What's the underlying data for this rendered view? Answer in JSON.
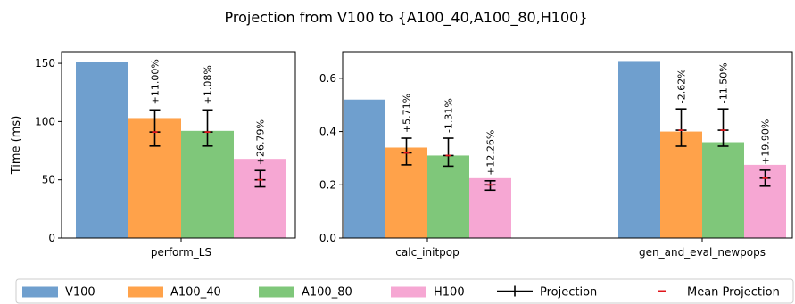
{
  "figure": {
    "title": "Projection from V100 to {A100_40,A100_80,H100}"
  },
  "colors": {
    "V100": "#6f9fce",
    "A100_40": "#ffa24a",
    "A100_80": "#7fc77a",
    "H100": "#f6a7d3",
    "projection": "#000000",
    "mean_projection": "#e0151b"
  },
  "legend": {
    "placement": "bottom",
    "entries": [
      {
        "label": "V100",
        "kind": "patch",
        "color_key": "V100"
      },
      {
        "label": "A100_40",
        "kind": "patch",
        "color_key": "A100_40"
      },
      {
        "label": "A100_80",
        "kind": "patch",
        "color_key": "A100_80"
      },
      {
        "label": "H100",
        "kind": "patch",
        "color_key": "H100"
      },
      {
        "label": "Projection",
        "kind": "errorbar",
        "color_key": "projection"
      },
      {
        "label": "Mean Projection",
        "kind": "dash",
        "color_key": "mean_projection"
      }
    ]
  },
  "chart_data": [
    {
      "type": "bar",
      "ylabel": "Time (ms)",
      "ylim": [
        0,
        160
      ],
      "yticks": [
        0,
        50,
        100,
        150
      ],
      "categories": [
        "perform_LS"
      ],
      "series": [
        {
          "name": "V100",
          "values": [
            151
          ]
        },
        {
          "name": "A100_40",
          "values": [
            103
          ]
        },
        {
          "name": "A100_80",
          "values": [
            92
          ]
        },
        {
          "name": "H100",
          "values": [
            68
          ]
        }
      ],
      "projections": [
        {
          "series": "A100_40",
          "category": "perform_LS",
          "mean": 91,
          "low": 79,
          "high": 110,
          "label": "+11.00%"
        },
        {
          "series": "A100_80",
          "category": "perform_LS",
          "mean": 91,
          "low": 79,
          "high": 110,
          "label": "+1.08%"
        },
        {
          "series": "H100",
          "category": "perform_LS",
          "mean": 50,
          "low": 44,
          "high": 58,
          "label": "+26.79%"
        }
      ]
    },
    {
      "type": "bar",
      "ylabel": "",
      "ylim": [
        0,
        0.7
      ],
      "yticks": [
        0.0,
        0.2,
        0.4,
        0.6
      ],
      "categories": [
        "calc_initpop",
        "gen_and_eval_newpops"
      ],
      "series": [
        {
          "name": "V100",
          "values": [
            0.52,
            0.665
          ]
        },
        {
          "name": "A100_40",
          "values": [
            0.34,
            0.4
          ]
        },
        {
          "name": "A100_80",
          "values": [
            0.31,
            0.36
          ]
        },
        {
          "name": "H100",
          "values": [
            0.225,
            0.275
          ]
        }
      ],
      "projections": [
        {
          "series": "A100_40",
          "category": "calc_initpop",
          "mean": 0.32,
          "low": 0.275,
          "high": 0.375,
          "label": "+5.71%"
        },
        {
          "series": "A100_80",
          "category": "calc_initpop",
          "mean": 0.31,
          "low": 0.27,
          "high": 0.375,
          "label": "-1.31%"
        },
        {
          "series": "H100",
          "category": "calc_initpop",
          "mean": 0.2,
          "low": 0.18,
          "high": 0.215,
          "label": "+12.26%"
        },
        {
          "series": "A100_40",
          "category": "gen_and_eval_newpops",
          "mean": 0.405,
          "low": 0.345,
          "high": 0.485,
          "label": "-2.62%"
        },
        {
          "series": "A100_80",
          "category": "gen_and_eval_newpops",
          "mean": 0.405,
          "low": 0.345,
          "high": 0.485,
          "label": "-11.50%"
        },
        {
          "series": "H100",
          "category": "gen_and_eval_newpops",
          "mean": 0.225,
          "low": 0.195,
          "high": 0.255,
          "label": "+19.90%"
        }
      ]
    }
  ]
}
